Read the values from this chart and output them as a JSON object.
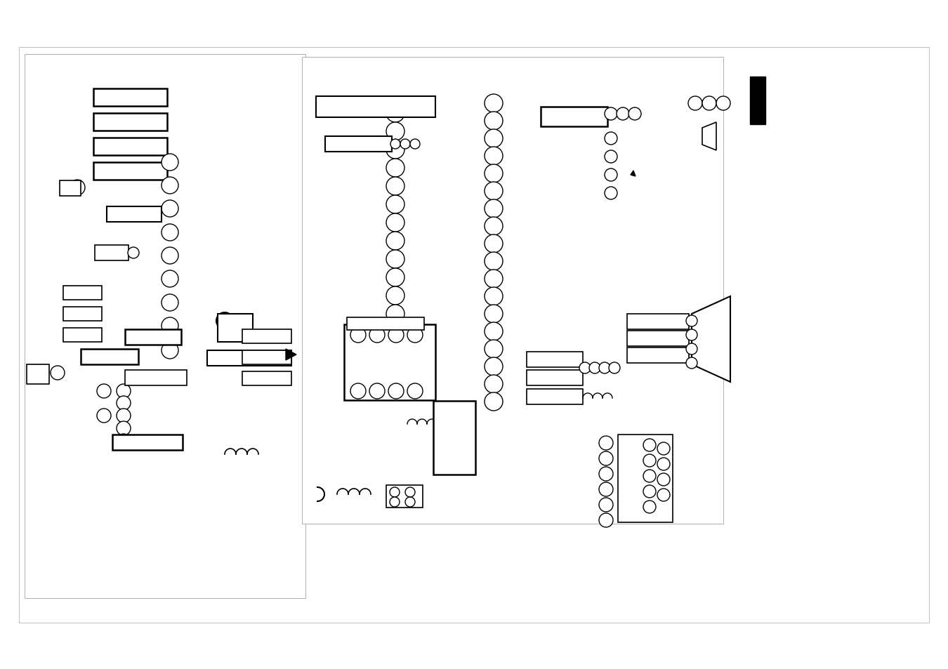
{
  "bg": "#ffffff",
  "lc": "#000000",
  "fw": 13.5,
  "fh": 9.54,
  "dpi": 100
}
